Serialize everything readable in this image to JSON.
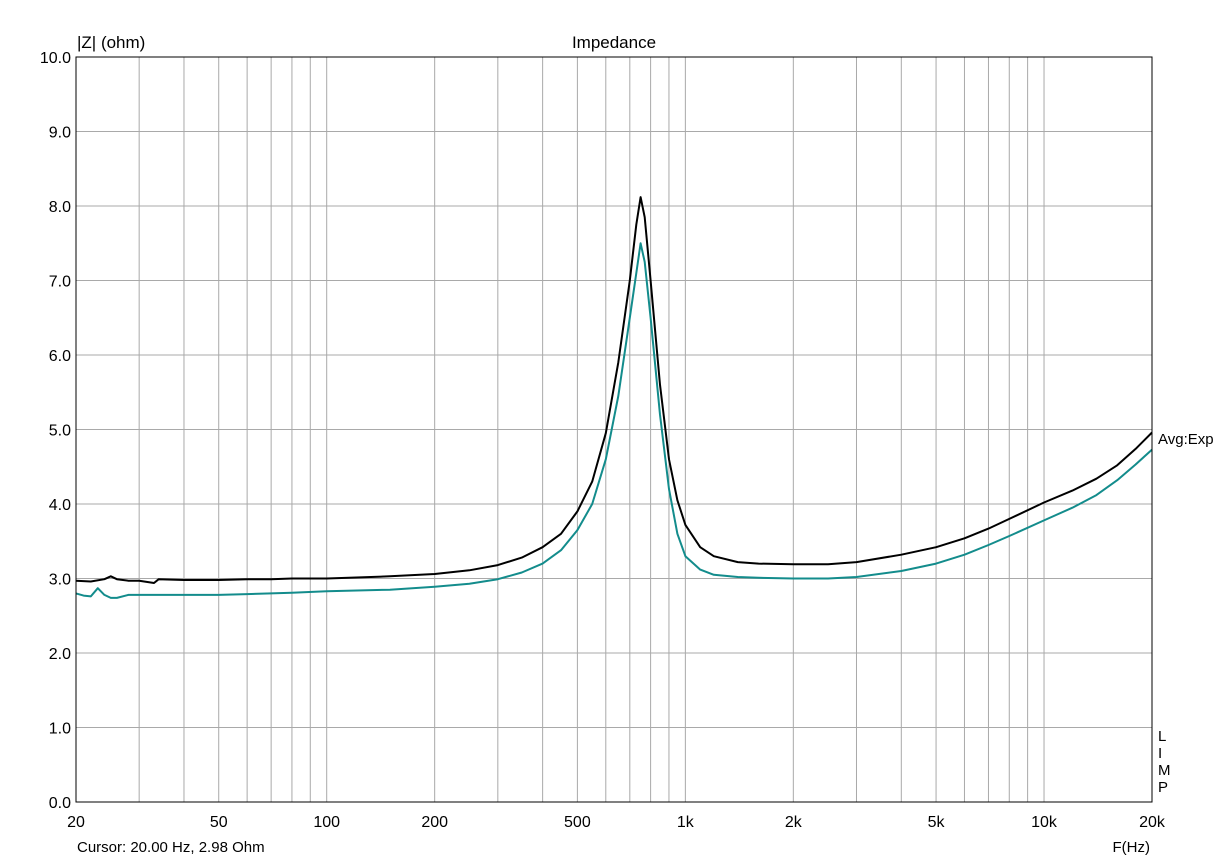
{
  "chart_data": {
    "type": "line",
    "title": "Impedance",
    "ylabel": "|Z| (ohm)",
    "xlabel": "F(Hz)",
    "x_scale": "log",
    "xlim": [
      20,
      20000
    ],
    "ylim": [
      0,
      10
    ],
    "grid": true,
    "y_ticks": [
      {
        "value": 0,
        "label": "0.0"
      },
      {
        "value": 1,
        "label": "1.0"
      },
      {
        "value": 2,
        "label": "2.0"
      },
      {
        "value": 3,
        "label": "3.0"
      },
      {
        "value": 4,
        "label": "4.0"
      },
      {
        "value": 5,
        "label": "5.0"
      },
      {
        "value": 6,
        "label": "6.0"
      },
      {
        "value": 7,
        "label": "7.0"
      },
      {
        "value": 8,
        "label": "8.0"
      },
      {
        "value": 9,
        "label": "9.0"
      },
      {
        "value": 10,
        "label": "10.0"
      }
    ],
    "x_ticks": [
      {
        "value": 20,
        "label": "20"
      },
      {
        "value": 50,
        "label": "50"
      },
      {
        "value": 100,
        "label": "100"
      },
      {
        "value": 200,
        "label": "200"
      },
      {
        "value": 500,
        "label": "500"
      },
      {
        "value": 1000,
        "label": "1k"
      },
      {
        "value": 2000,
        "label": "2k"
      },
      {
        "value": 5000,
        "label": "5k"
      },
      {
        "value": 10000,
        "label": "10k"
      },
      {
        "value": 20000,
        "label": "20k"
      }
    ],
    "x_minor_grid": [
      30,
      40,
      50,
      60,
      70,
      80,
      90,
      100,
      200,
      300,
      400,
      500,
      600,
      700,
      800,
      900,
      1000,
      2000,
      3000,
      4000,
      5000,
      6000,
      7000,
      8000,
      9000,
      10000
    ],
    "series": [
      {
        "color": "#000000",
        "points": [
          [
            20,
            2.97
          ],
          [
            22,
            2.96
          ],
          [
            24,
            2.99
          ],
          [
            25,
            3.03
          ],
          [
            26,
            2.99
          ],
          [
            28,
            2.97
          ],
          [
            30,
            2.97
          ],
          [
            33,
            2.94
          ],
          [
            34,
            2.99
          ],
          [
            40,
            2.98
          ],
          [
            50,
            2.98
          ],
          [
            60,
            2.99
          ],
          [
            70,
            2.99
          ],
          [
            80,
            3.0
          ],
          [
            100,
            3.0
          ],
          [
            150,
            3.03
          ],
          [
            200,
            3.06
          ],
          [
            250,
            3.11
          ],
          [
            300,
            3.18
          ],
          [
            350,
            3.28
          ],
          [
            400,
            3.42
          ],
          [
            450,
            3.6
          ],
          [
            500,
            3.9
          ],
          [
            550,
            4.3
          ],
          [
            600,
            4.95
          ],
          [
            650,
            5.9
          ],
          [
            700,
            7.0
          ],
          [
            730,
            7.75
          ],
          [
            750,
            8.12
          ],
          [
            770,
            7.85
          ],
          [
            800,
            7.0
          ],
          [
            850,
            5.6
          ],
          [
            900,
            4.6
          ],
          [
            950,
            4.05
          ],
          [
            1000,
            3.72
          ],
          [
            1100,
            3.42
          ],
          [
            1200,
            3.3
          ],
          [
            1400,
            3.22
          ],
          [
            1600,
            3.2
          ],
          [
            2000,
            3.19
          ],
          [
            2500,
            3.19
          ],
          [
            3000,
            3.22
          ],
          [
            4000,
            3.32
          ],
          [
            5000,
            3.42
          ],
          [
            6000,
            3.54
          ],
          [
            7000,
            3.67
          ],
          [
            8000,
            3.8
          ],
          [
            10000,
            4.02
          ],
          [
            12000,
            4.18
          ],
          [
            14000,
            4.34
          ],
          [
            16000,
            4.52
          ],
          [
            18000,
            4.74
          ],
          [
            20000,
            4.96
          ]
        ]
      },
      {
        "color": "#138c8c",
        "points": [
          [
            20,
            2.8
          ],
          [
            21,
            2.77
          ],
          [
            22,
            2.76
          ],
          [
            23,
            2.87
          ],
          [
            24,
            2.78
          ],
          [
            25,
            2.74
          ],
          [
            26,
            2.74
          ],
          [
            28,
            2.78
          ],
          [
            30,
            2.78
          ],
          [
            40,
            2.78
          ],
          [
            50,
            2.78
          ],
          [
            60,
            2.79
          ],
          [
            70,
            2.8
          ],
          [
            80,
            2.81
          ],
          [
            100,
            2.83
          ],
          [
            150,
            2.85
          ],
          [
            200,
            2.89
          ],
          [
            250,
            2.93
          ],
          [
            300,
            2.99
          ],
          [
            350,
            3.08
          ],
          [
            400,
            3.2
          ],
          [
            450,
            3.38
          ],
          [
            500,
            3.65
          ],
          [
            550,
            4.0
          ],
          [
            600,
            4.6
          ],
          [
            650,
            5.45
          ],
          [
            700,
            6.5
          ],
          [
            730,
            7.1
          ],
          [
            750,
            7.5
          ],
          [
            770,
            7.25
          ],
          [
            800,
            6.5
          ],
          [
            850,
            5.2
          ],
          [
            900,
            4.2
          ],
          [
            950,
            3.6
          ],
          [
            1000,
            3.3
          ],
          [
            1100,
            3.12
          ],
          [
            1200,
            3.05
          ],
          [
            1400,
            3.02
          ],
          [
            1600,
            3.01
          ],
          [
            2000,
            3.0
          ],
          [
            2500,
            3.0
          ],
          [
            3000,
            3.02
          ],
          [
            4000,
            3.1
          ],
          [
            5000,
            3.2
          ],
          [
            6000,
            3.32
          ],
          [
            7000,
            3.45
          ],
          [
            8000,
            3.57
          ],
          [
            10000,
            3.78
          ],
          [
            12000,
            3.95
          ],
          [
            14000,
            4.12
          ],
          [
            16000,
            4.32
          ],
          [
            18000,
            4.53
          ],
          [
            20000,
            4.73
          ]
        ]
      }
    ],
    "right_label": "Avg:Exp",
    "side_label": "LIMP",
    "cursor_text": "Cursor: 20.00 Hz, 2.98 Ohm"
  }
}
